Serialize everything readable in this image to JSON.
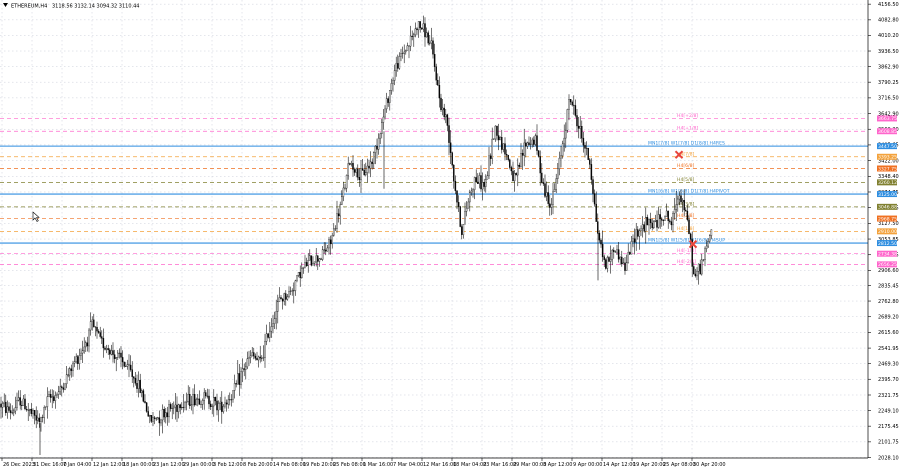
{
  "header": {
    "symbol": "ETHEREUM,H4",
    "ohlc": "3118.56 3132.14 3094.32 3110.44"
  },
  "colors": {
    "background": "#ffffff",
    "candle": "#000000",
    "grid": "#c8ccd8",
    "axis_text": "#000000",
    "blue_level": "#2f8ee0",
    "x_marker": "#e8453c"
  },
  "chart_data": {
    "type": "candlestick",
    "title": "",
    "xlabel": "",
    "ylabel": "",
    "ylim": [
      2026.0,
      4176.0
    ],
    "grid": true,
    "y_ticks": [
      "4156.50",
      "4082.80",
      "4010.20",
      "3936.50",
      "3862.90",
      "3790.25",
      "3716.50",
      "3642.90",
      "3569.30",
      "3495.65",
      "3422.00",
      "3348.40",
      "3274.75",
      "3201.15",
      "3127.50",
      "3053.85",
      "2980.25",
      "2906.60",
      "2835.45",
      "2762.80",
      "2689.20",
      "2615.60",
      "2541.95",
      "2469.30",
      "2395.70",
      "2321.75",
      "2249.10",
      "2175.45",
      "2101.75",
      "2028.10"
    ],
    "x_ticks": [
      "26 Dec 2023",
      "31 Dec 16:00",
      "7 Jan 04:00",
      "12 Jan 12:00",
      "18 Jan 00:00",
      "23 Jan 12:00",
      "29 Jan 00:00",
      "3 Feb 12:00",
      "8 Feb 20:00",
      "14 Feb 08:00",
      "19 Feb 20:00",
      "25 Feb 08:00",
      "1 Mar 16:00",
      "7 Mar 04:00",
      "12 Mar 16:00",
      "18 Mar 04:00",
      "23 Mar 16:00",
      "29 Mar 00:00",
      "3 Apr 12:00",
      "9 Apr 00:00",
      "14 Apr 12:00",
      "19 Apr 20:00",
      "25 Apr 08:00",
      "30 Apr 20:00"
    ],
    "price_anchors": [
      [
        0,
        2280
      ],
      [
        12,
        2240
      ],
      [
        20,
        2300
      ],
      [
        32,
        2230
      ],
      [
        40,
        2190
      ],
      [
        48,
        2300
      ],
      [
        60,
        2340
      ],
      [
        75,
        2480
      ],
      [
        85,
        2560
      ],
      [
        92,
        2650
      ],
      [
        100,
        2580
      ],
      [
        112,
        2520
      ],
      [
        122,
        2480
      ],
      [
        132,
        2420
      ],
      [
        142,
        2330
      ],
      [
        150,
        2200
      ],
      [
        162,
        2230
      ],
      [
        175,
        2270
      ],
      [
        190,
        2300
      ],
      [
        205,
        2310
      ],
      [
        220,
        2270
      ],
      [
        232,
        2320
      ],
      [
        242,
        2430
      ],
      [
        252,
        2510
      ],
      [
        260,
        2470
      ],
      [
        270,
        2640
      ],
      [
        280,
        2770
      ],
      [
        290,
        2800
      ],
      [
        300,
        2900
      ],
      [
        310,
        2950
      ],
      [
        320,
        2970
      ],
      [
        330,
        3030
      ],
      [
        340,
        3200
      ],
      [
        350,
        3420
      ],
      [
        360,
        3340
      ],
      [
        372,
        3420
      ],
      [
        380,
        3560
      ],
      [
        388,
        3720
      ],
      [
        395,
        3850
      ],
      [
        402,
        3920
      ],
      [
        410,
        3980
      ],
      [
        418,
        4060
      ],
      [
        425,
        4030
      ],
      [
        432,
        3940
      ],
      [
        440,
        3700
      ],
      [
        448,
        3580
      ],
      [
        455,
        3300
      ],
      [
        462,
        3080
      ],
      [
        468,
        3240
      ],
      [
        475,
        3340
      ],
      [
        485,
        3300
      ],
      [
        495,
        3580
      ],
      [
        505,
        3470
      ],
      [
        515,
        3320
      ],
      [
        525,
        3500
      ],
      [
        535,
        3520
      ],
      [
        545,
        3270
      ],
      [
        552,
        3220
      ],
      [
        560,
        3430
      ],
      [
        570,
        3720
      ],
      [
        580,
        3560
      ],
      [
        590,
        3410
      ],
      [
        597,
        3110
      ],
      [
        605,
        2930
      ],
      [
        615,
        3010
      ],
      [
        625,
        2920
      ],
      [
        635,
        3080
      ],
      [
        645,
        3120
      ],
      [
        655,
        3130
      ],
      [
        665,
        3170
      ],
      [
        672,
        3120
      ],
      [
        678,
        3280
      ],
      [
        684,
        3210
      ],
      [
        690,
        3060
      ],
      [
        694,
        2870
      ],
      [
        700,
        2920
      ],
      [
        706,
        3000
      ],
      [
        712,
        3110
      ]
    ],
    "horizontal_levels": [
      {
        "label": "H4[+2/8]",
        "tag": "3663.75",
        "value": 3620,
        "color": "#ff66cc",
        "style": "dashed"
      },
      {
        "label": "H4[+1/8]",
        "tag": "3608.85",
        "value": 3560,
        "color": "#ff66cc",
        "style": "dashed"
      },
      {
        "label": "MN1[7/8] W1[7/8] D1[8/8] H4RES",
        "tag": "3447.50",
        "value": 3490,
        "color": "#2f8ee0",
        "style": "solid"
      },
      {
        "label": "H4[7/8]",
        "tag": "3393.25",
        "value": 3440,
        "color": "#f3a23c",
        "style": "dashed"
      },
      {
        "label": "H4[6/8]",
        "tag": "3327.75",
        "value": 3385,
        "color": "#f07020",
        "style": "dashed"
      },
      {
        "label": "H4[5/8]",
        "tag": "3260.12",
        "value": 3320,
        "color": "#808030",
        "style": "dashed"
      },
      {
        "label": "MN1[6/8] W1[6/8] D1[7/8] H4PIVOT",
        "tag": "3125.00",
        "value": 3265,
        "color": "#2f8ee0",
        "style": "solid"
      },
      {
        "label": "H4[3/8]",
        "tag": "3046.88",
        "value": 3205,
        "color": "#808030",
        "style": "dashed"
      },
      {
        "label": "H4[2/8]",
        "tag": "2968.75",
        "value": 3150,
        "color": "#f07020",
        "style": "dashed"
      },
      {
        "label": "H4[1/8]",
        "tag": "2910.00",
        "value": 3090,
        "color": "#f3a23c",
        "style": "dashed"
      },
      {
        "label": "MN1[5/8] W1[5/8] D1[6/8] H4SUP",
        "tag": "2812.50",
        "value": 3035,
        "color": "#2f8ee0",
        "style": "solid"
      },
      {
        "label": "H4[-1/8]",
        "tag": "2734.38",
        "value": 2985,
        "color": "#ff66cc",
        "style": "dashed"
      },
      {
        "label": "H4[-2/8]",
        "tag": "2656.25",
        "value": 2935,
        "color": "#ff66cc",
        "style": "dashed"
      }
    ],
    "markers": [
      {
        "type": "x",
        "price": 3450,
        "x_index": 679
      },
      {
        "type": "x",
        "price": 3030,
        "x_index": 693
      }
    ]
  }
}
